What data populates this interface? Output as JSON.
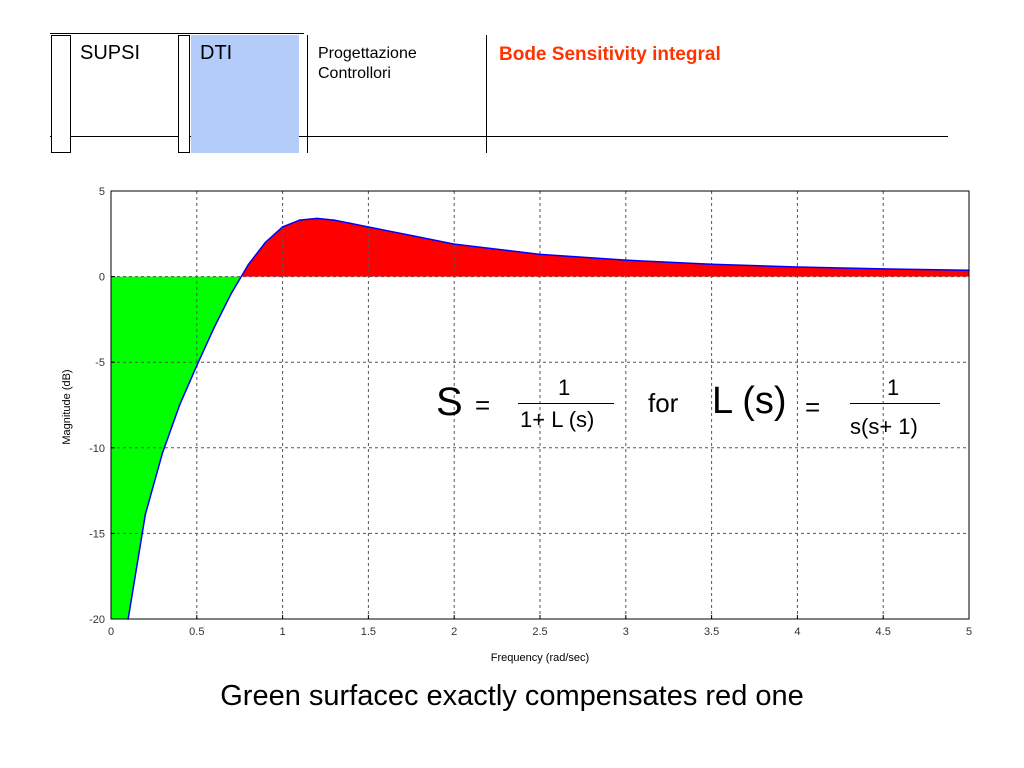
{
  "header": {
    "org": "SUPSI",
    "dept": "DTI",
    "course_line1": "Progettazione",
    "course_line2": "Controllori",
    "slide_title": "Bode Sensitivity integral"
  },
  "colors": {
    "positive_area": "#ff0000",
    "negative_area": "#00ff00",
    "curve": "#0000ff",
    "grid": "#555555",
    "header_accent": "#b4ccfa",
    "title": "#ff3300"
  },
  "formula": {
    "lhs_var": "S",
    "eq1": "=",
    "num1": "1",
    "den1": "1+ L (s)",
    "for_word": "for",
    "lhs2": "L (s)",
    "eq2": "=",
    "num2": "1",
    "den2": "s(s+ 1)"
  },
  "caption": "Green surfacec exactly compensates red one",
  "chart_data": {
    "type": "area",
    "xlabel": "Frequency  (rad/sec)",
    "ylabel": "Magnitude (dB)",
    "xlim": [
      0,
      5
    ],
    "ylim": [
      -20,
      5
    ],
    "xticks": [
      0,
      0.5,
      1,
      1.5,
      2,
      2.5,
      3,
      3.5,
      4,
      4.5,
      5
    ],
    "xtick_labels": [
      "0",
      "0.5",
      "1",
      "1.5",
      "2",
      "2.5",
      "3",
      "3.5",
      "4",
      "4.5",
      "5"
    ],
    "yticks": [
      -20,
      -15,
      -10,
      -5,
      0,
      5
    ],
    "ytick_labels": [
      "-20",
      "-15",
      "-10",
      "-5",
      "0",
      "5"
    ],
    "grid": true,
    "series": [
      {
        "values": [
          [
            0.1,
            -20.0
          ],
          [
            0.2,
            -13.9
          ],
          [
            0.3,
            -10.3
          ],
          [
            0.4,
            -7.5
          ],
          [
            0.5,
            -5.2
          ],
          [
            0.6,
            -3.0
          ],
          [
            0.7,
            -1.0
          ],
          [
            0.8,
            0.7
          ],
          [
            0.9,
            2.0
          ],
          [
            1.0,
            2.9
          ],
          [
            1.1,
            3.3
          ],
          [
            1.2,
            3.4
          ],
          [
            1.3,
            3.3
          ],
          [
            1.4,
            3.1
          ],
          [
            1.5,
            2.9
          ],
          [
            1.75,
            2.4
          ],
          [
            2.0,
            1.9
          ],
          [
            2.5,
            1.3
          ],
          [
            3.0,
            0.96
          ],
          [
            3.5,
            0.72
          ],
          [
            4.0,
            0.56
          ],
          [
            4.5,
            0.45
          ],
          [
            5.0,
            0.37
          ]
        ]
      }
    ]
  }
}
